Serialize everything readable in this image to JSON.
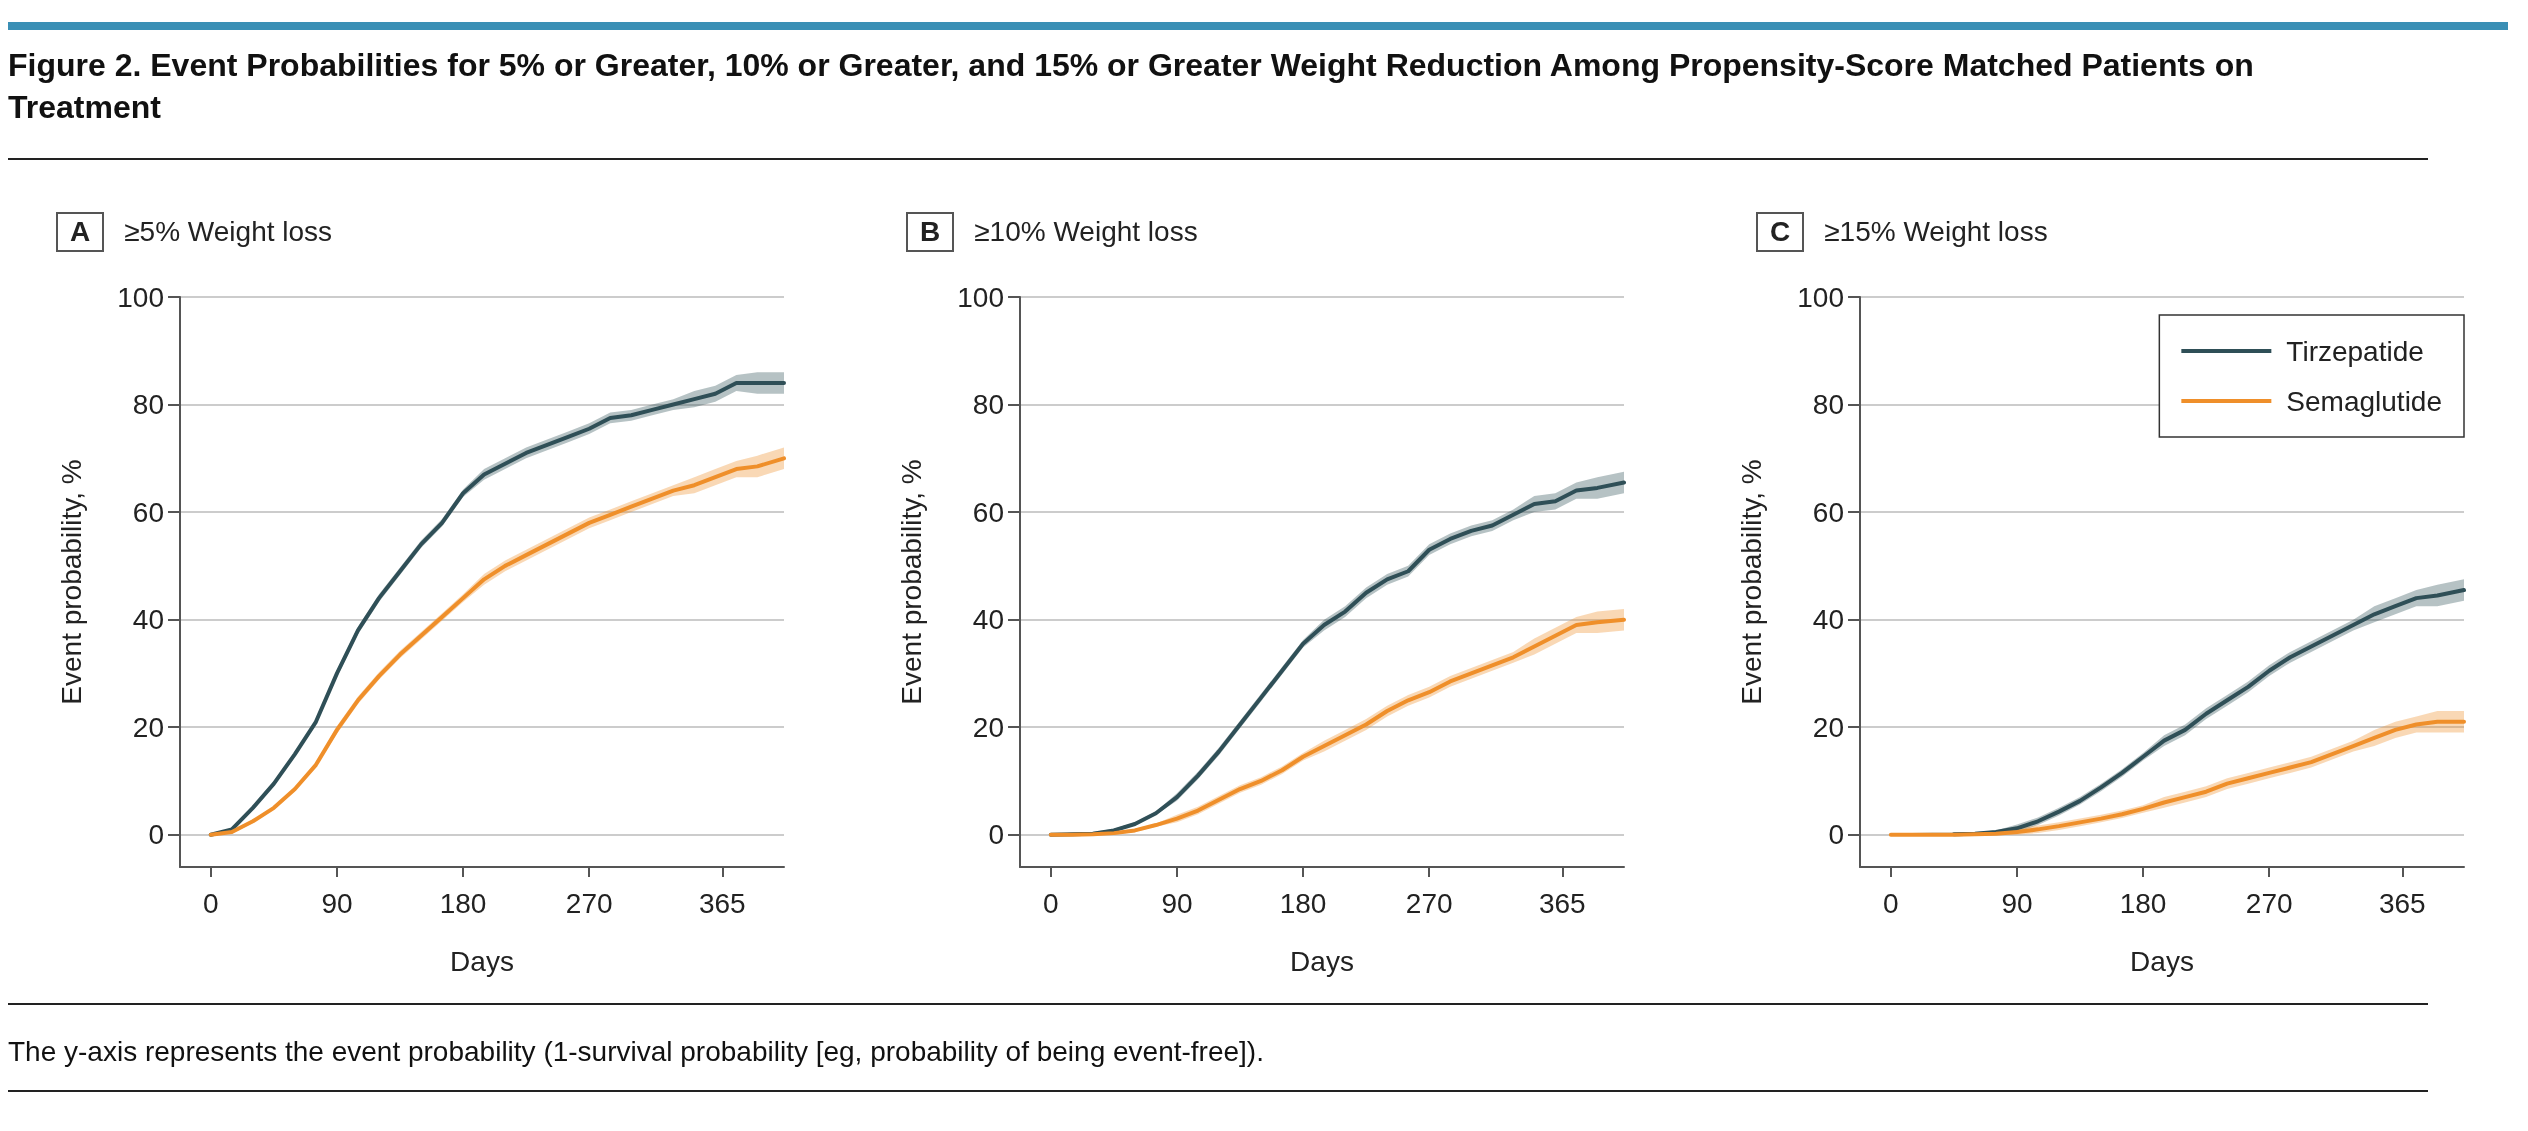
{
  "chart_data": [
    {
      "type": "line",
      "title": "≥5% Weight loss",
      "subtitle": "A",
      "xlabel": "Days",
      "ylabel": "Event probability, %",
      "annotations": [
        "Figure 2. Event Probabilities for 5% or Greater, 10% or Greater, and 15% or Greater Weight Reduction Among Propensity-Score Matched Patients on Treatment",
        "The y-axis represents the event probability (1-survival probability [eg, probability of being event-free])."
      ],
      "x": [
        0,
        15,
        30,
        45,
        60,
        75,
        90,
        105,
        120,
        135,
        150,
        165,
        180,
        195,
        210,
        225,
        240,
        255,
        270,
        285,
        300,
        315,
        330,
        345,
        360,
        375,
        390,
        409
      ],
      "series": [
        {
          "color": "#2f4f57",
          "values": [
            0,
            1,
            5,
            9.5,
            15,
            21,
            30,
            38,
            44,
            49,
            54,
            58,
            63.5,
            67,
            69,
            71,
            72.5,
            74,
            75.5,
            77.5,
            78,
            79,
            80,
            81,
            82,
            84,
            84,
            84
          ],
          "lower": [
            0,
            0.7,
            4.7,
            9.2,
            14.7,
            20.7,
            29.3,
            37.3,
            43.3,
            48.3,
            53.3,
            57.3,
            62.8,
            66,
            68,
            70,
            71.5,
            73,
            74.5,
            76.5,
            77,
            78,
            79,
            79.5,
            80.5,
            82.5,
            82,
            82
          ],
          "upper": [
            0,
            1.3,
            5.3,
            9.8,
            15.3,
            21.3,
            30.7,
            38.7,
            44.7,
            49.7,
            54.7,
            58.7,
            64.2,
            68,
            70,
            72,
            73.5,
            75,
            76.5,
            78.5,
            79,
            80,
            81,
            82.5,
            83.5,
            85.5,
            86,
            86
          ]
        },
        {
          "color": "#ef8f2a",
          "values": [
            0,
            0.5,
            2.5,
            5,
            8.5,
            13,
            19.5,
            25,
            29.5,
            33.5,
            37,
            40.5,
            44,
            47.5,
            50,
            52,
            54,
            56,
            58,
            59.5,
            61,
            62.5,
            64,
            65,
            66.5,
            68,
            68.5,
            70
          ],
          "lower": [
            0,
            0.2,
            2.2,
            4.7,
            8.2,
            12.7,
            18.8,
            24.3,
            28.8,
            32.8,
            36.3,
            39.8,
            43.3,
            46.5,
            49,
            51,
            53,
            55,
            57,
            58.5,
            60,
            61.5,
            63,
            63.5,
            65,
            66.5,
            66.5,
            68
          ],
          "upper": [
            0,
            0.8,
            2.8,
            5.3,
            8.8,
            13.3,
            20.2,
            25.7,
            30.2,
            34.2,
            37.7,
            41.2,
            44.7,
            48.5,
            51,
            53,
            55,
            57,
            59,
            60.5,
            62,
            63.5,
            65,
            66.5,
            68,
            69.5,
            70.5,
            72
          ]
        }
      ],
      "xlim": [
        -22,
        409
      ],
      "xticks": [
        0,
        90,
        180,
        270,
        365
      ],
      "ylim": [
        -6,
        100
      ],
      "yticks": [
        0,
        20,
        40,
        60,
        80,
        100
      ],
      "grid": "y",
      "legend": false
    },
    {
      "type": "line",
      "title": "≥10% Weight loss",
      "subtitle": "B",
      "xlabel": "Days",
      "ylabel": "Event probability, %",
      "x": [
        0,
        15,
        30,
        45,
        60,
        75,
        90,
        105,
        120,
        135,
        150,
        165,
        180,
        195,
        210,
        225,
        240,
        255,
        270,
        285,
        300,
        315,
        330,
        345,
        360,
        375,
        390,
        409
      ],
      "series": [
        {
          "color": "#2f4f57",
          "values": [
            0,
            0.1,
            0.2,
            0.8,
            2,
            4,
            7,
            11,
            15.5,
            20.5,
            25.5,
            30.5,
            35.5,
            39,
            41.5,
            45,
            47.5,
            49,
            53,
            55,
            56.5,
            57.5,
            59.5,
            61.5,
            62,
            64,
            64.5,
            65.5
          ],
          "lower": [
            0,
            0,
            0,
            0.5,
            1.7,
            3.7,
            6.3,
            10.3,
            14.8,
            19.8,
            24.8,
            29.8,
            34.8,
            38,
            40.5,
            44,
            46.5,
            48,
            52,
            54,
            55.5,
            56.5,
            58.5,
            60,
            60.5,
            62.5,
            62.5,
            63.5
          ],
          "upper": [
            0,
            0.4,
            0.5,
            1.1,
            2.3,
            4.3,
            7.7,
            11.7,
            16.2,
            21.2,
            26.2,
            31.2,
            36.2,
            40,
            42.5,
            46,
            48.5,
            50,
            54,
            56,
            57.5,
            58.5,
            60.5,
            63,
            63.5,
            65.5,
            66.5,
            67.5
          ]
        },
        {
          "color": "#ef8f2a",
          "values": [
            0,
            0,
            0.1,
            0.3,
            0.8,
            1.8,
            3,
            4.5,
            6.5,
            8.5,
            10,
            12,
            14.5,
            16.5,
            18.5,
            20.5,
            23,
            25,
            26.5,
            28.5,
            30,
            31.5,
            33,
            35,
            37,
            39,
            39.5,
            40
          ],
          "lower": [
            0,
            0,
            0,
            0,
            0.5,
            1.5,
            2.3,
            3.8,
            5.8,
            7.8,
            9.3,
            11.3,
            13.8,
            15.5,
            17.5,
            19.5,
            22,
            24,
            25.5,
            27.5,
            29,
            30.5,
            32,
            33.5,
            35.5,
            37.5,
            37.5,
            38
          ],
          "upper": [
            0,
            0.3,
            0.4,
            0.6,
            1.1,
            2.1,
            3.7,
            5.2,
            7.2,
            9.2,
            10.7,
            12.7,
            15.2,
            17.5,
            19.5,
            21.5,
            24,
            26,
            27.5,
            29.5,
            31,
            32.5,
            34,
            36.5,
            38.5,
            40.5,
            41.5,
            42
          ]
        }
      ],
      "xlim": [
        -22,
        409
      ],
      "xticks": [
        0,
        90,
        180,
        270,
        365
      ],
      "ylim": [
        -6,
        100
      ],
      "yticks": [
        0,
        20,
        40,
        60,
        80,
        100
      ],
      "grid": "y",
      "legend": false
    },
    {
      "type": "line",
      "title": "≥15% Weight loss",
      "subtitle": "C",
      "xlabel": "Days",
      "ylabel": "Event probability, %",
      "x": [
        0,
        15,
        30,
        45,
        60,
        75,
        90,
        105,
        120,
        135,
        150,
        165,
        180,
        195,
        210,
        225,
        240,
        255,
        270,
        285,
        300,
        315,
        330,
        345,
        360,
        375,
        390,
        409
      ],
      "series": [
        {
          "name": "Tirzepatide",
          "color": "#2f4f57",
          "values": [
            null,
            null,
            null,
            0.1,
            0.2,
            0.5,
            1.2,
            2.5,
            4.3,
            6.3,
            8.8,
            11.5,
            14.5,
            17.5,
            19.5,
            22.5,
            25,
            27.5,
            30.5,
            33,
            35,
            37,
            39,
            41,
            42.5,
            44,
            44.5,
            45.5
          ],
          "lower": [
            0,
            0,
            0,
            0,
            0,
            0.2,
            0.5,
            1.8,
            3.6,
            5.6,
            8.1,
            10.8,
            13.8,
            16.5,
            18.5,
            21.5,
            24,
            26.5,
            29.5,
            32,
            34,
            36,
            38,
            39.5,
            41,
            42.5,
            42.5,
            43.5
          ],
          "upper": [
            0,
            0.3,
            0.4,
            0.4,
            0.5,
            0.8,
            1.9,
            3.2,
            5,
            7,
            9.5,
            12.2,
            15.2,
            18.5,
            20.5,
            23.5,
            26,
            28.5,
            31.5,
            34,
            36,
            38,
            40,
            42.5,
            44,
            45.5,
            46.5,
            47.5
          ]
        },
        {
          "name": "Semaglutide",
          "color": "#ef8f2a",
          "values": [
            0,
            0,
            0,
            0,
            0.1,
            0.2,
            0.5,
            1,
            1.6,
            2.3,
            3,
            3.8,
            4.8,
            6,
            7,
            8,
            9.5,
            10.5,
            11.5,
            12.5,
            13.5,
            15,
            16.5,
            18,
            19.5,
            20.5,
            21,
            21
          ],
          "lower": [
            0,
            0,
            0,
            0,
            0,
            0,
            0,
            0.3,
            0.9,
            1.6,
            2.3,
            3.1,
            4.1,
            5,
            6,
            7,
            8.5,
            9.5,
            10.5,
            11.5,
            12.5,
            14,
            15.5,
            16.5,
            18,
            19,
            19,
            19
          ],
          "upper": [
            0,
            0.3,
            0.3,
            0.3,
            0.4,
            0.5,
            1.2,
            1.7,
            2.3,
            3,
            3.7,
            4.5,
            5.5,
            7,
            8,
            9,
            10.5,
            11.5,
            12.5,
            13.5,
            14.5,
            16,
            17.5,
            19.5,
            21,
            22,
            23,
            23
          ]
        }
      ],
      "xlim": [
        -22,
        409
      ],
      "xticks": [
        0,
        90,
        180,
        270,
        365
      ],
      "ylim": [
        -6,
        100
      ],
      "yticks": [
        0,
        20,
        40,
        60,
        80,
        100
      ],
      "grid": "y",
      "legend": "top right"
    }
  ]
}
